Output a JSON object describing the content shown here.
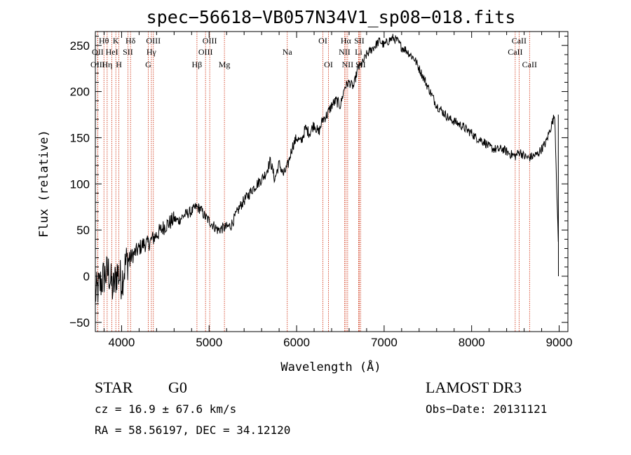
{
  "chart_data": {
    "type": "line",
    "title": "spec−56618−VB057N34V1_sp08−018.fits",
    "xlabel": "Wavelength (Å)",
    "ylabel": "Flux (relative)",
    "xlim": [
      3700,
      9100
    ],
    "ylim": [
      -60,
      265
    ],
    "xticks": [
      4000,
      5000,
      6000,
      7000,
      8000,
      9000
    ],
    "yticks": [
      -50,
      0,
      50,
      100,
      150,
      200,
      250
    ],
    "xtick_labels": [
      "4000",
      "5000",
      "6000",
      "7000",
      "8000",
      "9000"
    ],
    "ytick_labels": [
      "−50",
      "0",
      "50",
      "100",
      "150",
      "200",
      "250"
    ],
    "series": [
      {
        "name": "flux",
        "x": [
          3700,
          3750,
          3800,
          3850,
          3900,
          3950,
          4000,
          4050,
          4100,
          4150,
          4200,
          4250,
          4300,
          4350,
          4400,
          4450,
          4500,
          4550,
          4600,
          4650,
          4700,
          4750,
          4800,
          4850,
          4900,
          4950,
          5000,
          5050,
          5100,
          5150,
          5200,
          5250,
          5300,
          5350,
          5400,
          5450,
          5500,
          5550,
          5600,
          5650,
          5700,
          5750,
          5800,
          5850,
          5900,
          5950,
          6000,
          6050,
          6100,
          6150,
          6200,
          6250,
          6300,
          6350,
          6400,
          6450,
          6500,
          6550,
          6600,
          6650,
          6700,
          6750,
          6800,
          6850,
          6900,
          6950,
          7000,
          7050,
          7100,
          7150,
          7200,
          7250,
          7300,
          7350,
          7400,
          7450,
          7500,
          7550,
          7600,
          7650,
          7700,
          7750,
          7800,
          7850,
          7900,
          7950,
          8000,
          8050,
          8100,
          8150,
          8200,
          8250,
          8300,
          8350,
          8400,
          8450,
          8500,
          8550,
          8600,
          8650,
          8700,
          8750,
          8800,
          8850,
          8900,
          8950,
          9000
        ],
        "y": [
          -20,
          -10,
          0,
          5,
          -15,
          5,
          -5,
          15,
          20,
          25,
          30,
          35,
          35,
          40,
          45,
          50,
          55,
          58,
          62,
          60,
          65,
          68,
          70,
          75,
          73,
          65,
          60,
          55,
          50,
          52,
          53,
          55,
          65,
          75,
          82,
          88,
          95,
          100,
          105,
          112,
          125,
          105,
          122,
          110,
          120,
          140,
          150,
          145,
          160,
          155,
          165,
          155,
          170,
          175,
          185,
          190,
          185,
          205,
          210,
          205,
          225,
          230,
          240,
          245,
          250,
          255,
          250,
          255,
          258,
          255,
          248,
          245,
          240,
          235,
          225,
          215,
          205,
          195,
          185,
          180,
          175,
          170,
          168,
          165,
          162,
          158,
          155,
          150,
          148,
          145,
          140,
          138,
          137,
          138,
          135,
          132,
          130,
          135,
          130,
          128,
          130,
          132,
          138,
          145,
          160,
          175,
          0
        ]
      }
    ],
    "line_markers": [
      {
        "label": "Hθ",
        "wavelength": 3798,
        "row": 1
      },
      {
        "label": "OII",
        "wavelength": 3727,
        "row": 2
      },
      {
        "label": "OIII",
        "wavelength": 3727,
        "row": 3
      },
      {
        "label": "K",
        "wavelength": 3934,
        "row": 1
      },
      {
        "label": "HeI",
        "wavelength": 3889,
        "row": 2
      },
      {
        "label": "Hη",
        "wavelength": 3835,
        "row": 3
      },
      {
        "label": "H",
        "wavelength": 3969,
        "row": 3
      },
      {
        "label": "Hδ",
        "wavelength": 4102,
        "row": 1
      },
      {
        "label": "SII",
        "wavelength": 4072,
        "row": 2
      },
      {
        "label": "OIII",
        "wavelength": 4363,
        "row": 1
      },
      {
        "label": "Hγ",
        "wavelength": 4340,
        "row": 2
      },
      {
        "label": "G",
        "wavelength": 4305,
        "row": 3
      },
      {
        "label": "Hβ",
        "wavelength": 4861,
        "row": 3
      },
      {
        "label": "OIII",
        "wavelength": 5007,
        "row": 1
      },
      {
        "label": "OIII",
        "wavelength": 4959,
        "row": 2
      },
      {
        "label": "Mg",
        "wavelength": 5175,
        "row": 3
      },
      {
        "label": "Na",
        "wavelength": 5893,
        "row": 2
      },
      {
        "label": "OI",
        "wavelength": 6300,
        "row": 1
      },
      {
        "label": "OI",
        "wavelength": 6364,
        "row": 3
      },
      {
        "label": "Hα",
        "wavelength": 6563,
        "row": 1
      },
      {
        "label": "NII",
        "wavelength": 6548,
        "row": 2
      },
      {
        "label": "NII",
        "wavelength": 6583,
        "row": 3
      },
      {
        "label": "SII",
        "wavelength": 6716,
        "row": 1
      },
      {
        "label": "Li",
        "wavelength": 6708,
        "row": 2
      },
      {
        "label": "SII",
        "wavelength": 6731,
        "row": 3
      },
      {
        "label": "CaII",
        "wavelength": 8542,
        "row": 1
      },
      {
        "label": "CaII",
        "wavelength": 8498,
        "row": 2
      },
      {
        "label": "CaII",
        "wavelength": 8662,
        "row": 3
      }
    ]
  },
  "info": {
    "object_class": "STAR",
    "subclass": "G0",
    "survey": "LAMOST DR3",
    "redshift": "cz = 16.9 ± 67.6 km/s",
    "obs_date": "Obs−Date: 20131121",
    "coords": "RA =  58.56197, DEC =  34.12120"
  },
  "colors": {
    "axis": "#000000",
    "spectrum": "#000000",
    "marker_line": "#cc2200"
  }
}
